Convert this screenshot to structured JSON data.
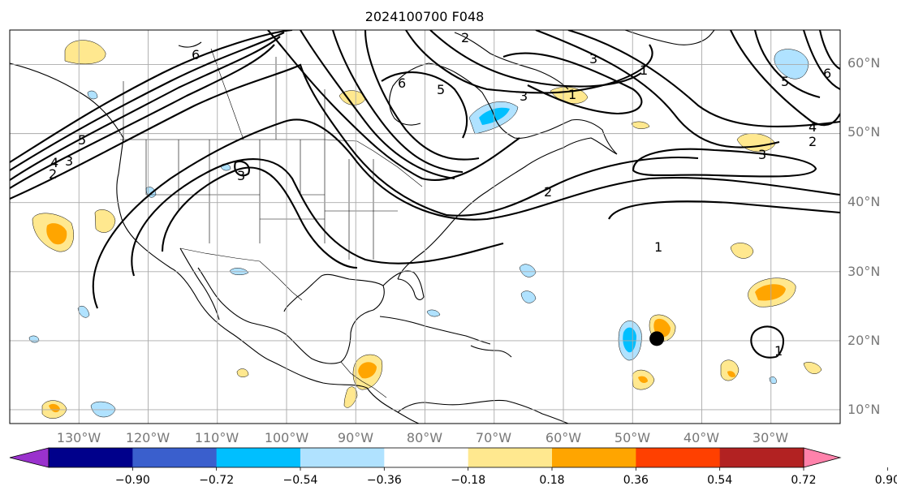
{
  "title": "2024100700 F048",
  "map": {
    "lon_range": [
      -140,
      -20
    ],
    "lat_range": [
      8,
      65
    ],
    "lon_gridlines": [
      -130,
      -120,
      -110,
      -100,
      -90,
      -80,
      -70,
      -60,
      -50,
      -40,
      -30,
      -20
    ],
    "lat_gridlines": [
      10,
      20,
      30,
      40,
      50,
      60
    ],
    "lon_labels": [
      "130°W",
      "120°W",
      "110°W",
      "100°W",
      "90°W",
      "80°W",
      "70°W",
      "60°W",
      "50°W",
      "40°W",
      "30°W"
    ],
    "lat_labels": [
      "60°N",
      "50°N",
      "40°N",
      "30°N",
      "20°N",
      "10°N"
    ]
  },
  "contour_labels": [
    "6",
    "5",
    "5",
    "4",
    "3",
    "2",
    "3",
    "2",
    "1",
    "3",
    "6",
    "1",
    "3",
    "2",
    "3",
    "6",
    "5",
    "4",
    "2",
    "1",
    "1"
  ],
  "storm_marker": {
    "lon": -46.5,
    "lat": 20.3,
    "color": "#000000"
  },
  "colorbar": {
    "ticks": [
      "−0.90",
      "−0.72",
      "−0.54",
      "−0.36",
      "−0.18",
      "0.18",
      "0.36",
      "0.54",
      "0.72",
      "0.90"
    ],
    "colors": [
      "#9a32cd",
      "#00008b",
      "#3a5fcd",
      "#00bfff",
      "#b0e2ff",
      "#ffffff",
      "#ffe88f",
      "#ffa500",
      "#ff4000",
      "#b22222",
      "#ff82ab"
    ],
    "extend": "both"
  }
}
